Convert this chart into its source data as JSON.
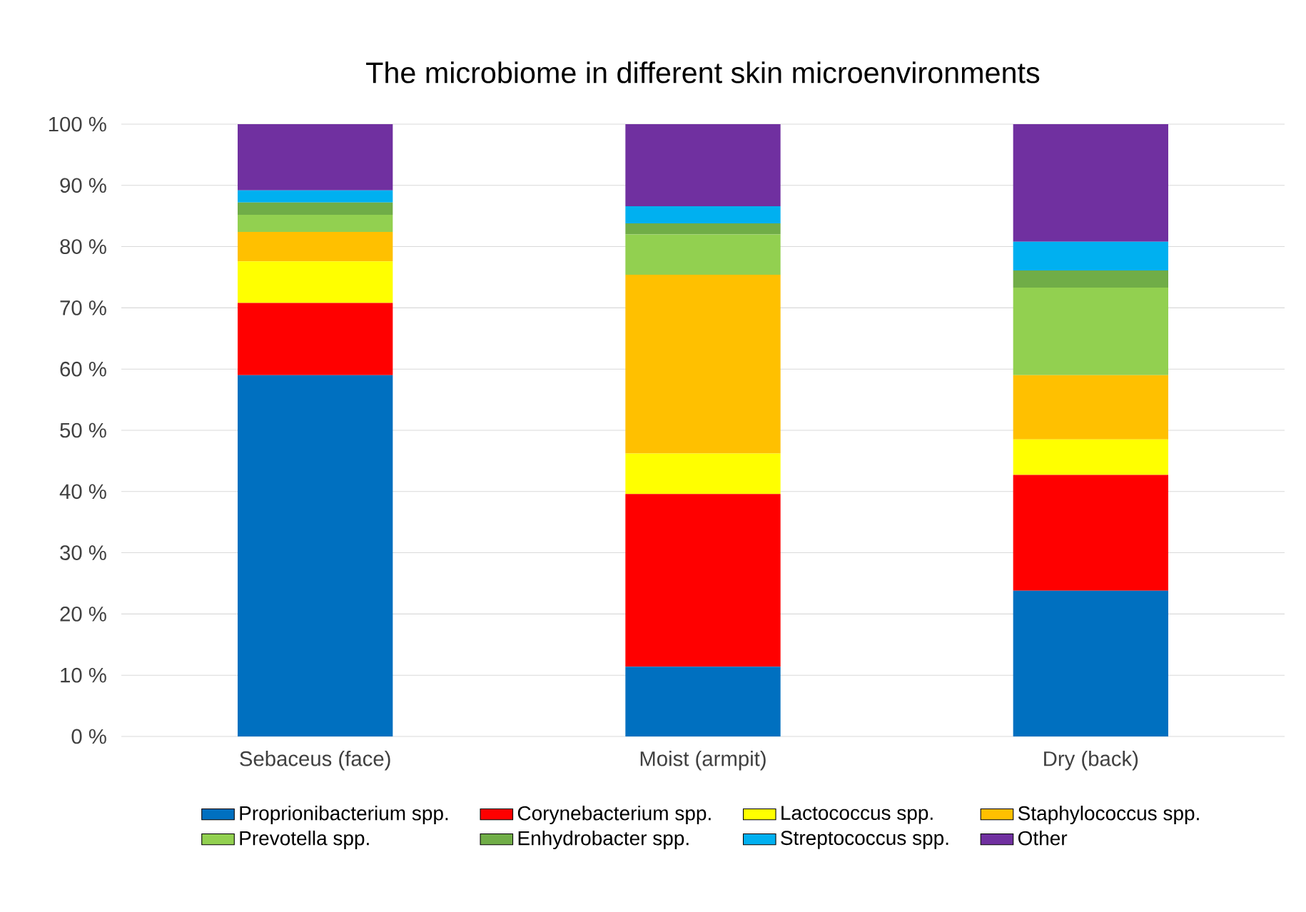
{
  "chart_data": {
    "type": "bar",
    "stacked": true,
    "title": "The microbiome in different skin microenvironments",
    "categories": [
      "Sebaceus (face)",
      "Moist (armpit)",
      "Dry (back)"
    ],
    "series": [
      {
        "name": "Proprionibacterium spp.",
        "color": "#0070c0",
        "values": [
          59.0,
          11.4,
          23.8
        ]
      },
      {
        "name": "Corynebacterium spp.",
        "color": "#ff0000",
        "values": [
          11.8,
          28.2,
          18.9
        ]
      },
      {
        "name": "Lactococcus spp.",
        "color": "#ffff00",
        "values": [
          6.8,
          6.6,
          5.8
        ]
      },
      {
        "name": "Staphylococcus spp.",
        "color": "#ffc000",
        "values": [
          4.8,
          29.2,
          10.5
        ]
      },
      {
        "name": "Prevotella spp.",
        "color": "#92d050",
        "values": [
          2.8,
          6.6,
          14.3
        ]
      },
      {
        "name": "Enhydrobacter spp.",
        "color": "#70ad47",
        "values": [
          2.0,
          1.8,
          2.8
        ]
      },
      {
        "name": "Streptococcus spp.",
        "color": "#00b0f0",
        "values": [
          2.0,
          2.8,
          4.7
        ]
      },
      {
        "name": "Other",
        "color": "#7030a0",
        "values": [
          10.8,
          13.4,
          19.2
        ]
      }
    ],
    "ylim": [
      0,
      100
    ],
    "yticks": [
      {
        "value": 0,
        "label": "0 %"
      },
      {
        "value": 10,
        "label": "10 %"
      },
      {
        "value": 20,
        "label": "20 %"
      },
      {
        "value": 30,
        "label": "30 %"
      },
      {
        "value": 40,
        "label": "40 %"
      },
      {
        "value": 50,
        "label": "50 %"
      },
      {
        "value": 60,
        "label": "60 %"
      },
      {
        "value": 70,
        "label": "70 %"
      },
      {
        "value": 80,
        "label": "80 %"
      },
      {
        "value": 90,
        "label": "90 %"
      },
      {
        "value": 100,
        "label": "100 %"
      }
    ],
    "grid": "y",
    "legend": "bottom"
  }
}
